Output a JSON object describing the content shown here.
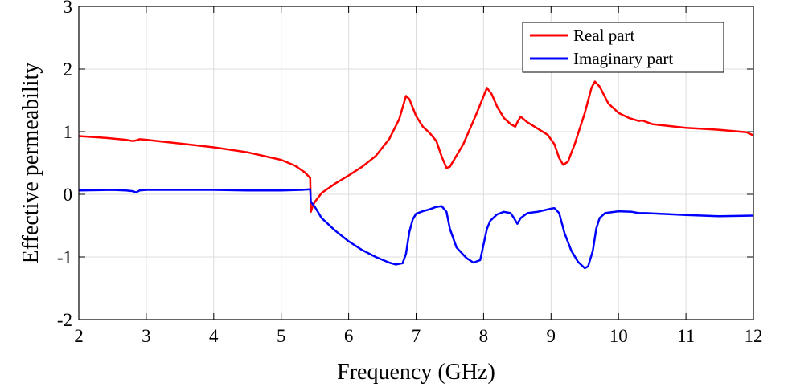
{
  "chart_data": {
    "type": "line",
    "title": "",
    "xlabel": "Frequency (GHz)",
    "ylabel": "Effective permeability",
    "xlim": [
      2,
      12
    ],
    "ylim": [
      -2,
      3
    ],
    "xticks": [
      2,
      3,
      4,
      5,
      6,
      7,
      8,
      9,
      10,
      11,
      12
    ],
    "yticks": [
      -2,
      -1,
      0,
      1,
      2,
      3
    ],
    "xtick_labels": [
      "2",
      "3",
      "4",
      "5",
      "6",
      "7",
      "8",
      "9",
      "10",
      "11",
      "12"
    ],
    "ytick_labels": [
      "-2",
      "-1",
      "0",
      "1",
      "2",
      "3"
    ],
    "grid": true,
    "legend_position": "top-right",
    "series": [
      {
        "name": "Real part",
        "color": "#ff0000",
        "points": [
          [
            2.0,
            0.93
          ],
          [
            2.4,
            0.9
          ],
          [
            2.7,
            0.87
          ],
          [
            2.8,
            0.85
          ],
          [
            2.85,
            0.86
          ],
          [
            2.9,
            0.88
          ],
          [
            3.0,
            0.87
          ],
          [
            3.5,
            0.81
          ],
          [
            4.0,
            0.75
          ],
          [
            4.5,
            0.67
          ],
          [
            5.0,
            0.55
          ],
          [
            5.2,
            0.46
          ],
          [
            5.35,
            0.35
          ],
          [
            5.43,
            0.26
          ],
          [
            5.44,
            -0.28
          ],
          [
            5.47,
            -0.18
          ],
          [
            5.5,
            -0.12
          ],
          [
            5.6,
            0.02
          ],
          [
            5.8,
            0.17
          ],
          [
            6.0,
            0.3
          ],
          [
            6.2,
            0.44
          ],
          [
            6.4,
            0.61
          ],
          [
            6.6,
            0.88
          ],
          [
            6.75,
            1.2
          ],
          [
            6.85,
            1.57
          ],
          [
            6.9,
            1.52
          ],
          [
            7.0,
            1.25
          ],
          [
            7.1,
            1.08
          ],
          [
            7.2,
            0.98
          ],
          [
            7.3,
            0.85
          ],
          [
            7.38,
            0.6
          ],
          [
            7.45,
            0.42
          ],
          [
            7.5,
            0.44
          ],
          [
            7.7,
            0.8
          ],
          [
            7.9,
            1.3
          ],
          [
            8.05,
            1.7
          ],
          [
            8.12,
            1.6
          ],
          [
            8.2,
            1.4
          ],
          [
            8.3,
            1.22
          ],
          [
            8.4,
            1.12
          ],
          [
            8.47,
            1.08
          ],
          [
            8.5,
            1.15
          ],
          [
            8.55,
            1.24
          ],
          [
            8.65,
            1.15
          ],
          [
            8.8,
            1.05
          ],
          [
            8.95,
            0.95
          ],
          [
            9.05,
            0.8
          ],
          [
            9.12,
            0.58
          ],
          [
            9.18,
            0.47
          ],
          [
            9.25,
            0.52
          ],
          [
            9.35,
            0.8
          ],
          [
            9.5,
            1.3
          ],
          [
            9.6,
            1.7
          ],
          [
            9.65,
            1.8
          ],
          [
            9.72,
            1.72
          ],
          [
            9.85,
            1.45
          ],
          [
            10.0,
            1.3
          ],
          [
            10.15,
            1.22
          ],
          [
            10.3,
            1.17
          ],
          [
            10.35,
            1.18
          ],
          [
            10.5,
            1.12
          ],
          [
            11.0,
            1.06
          ],
          [
            11.5,
            1.03
          ],
          [
            11.9,
            0.99
          ],
          [
            12.0,
            0.94
          ]
        ]
      },
      {
        "name": "Imaginary part",
        "color": "#0000ff",
        "points": [
          [
            2.0,
            0.06
          ],
          [
            2.5,
            0.07
          ],
          [
            2.7,
            0.06
          ],
          [
            2.8,
            0.05
          ],
          [
            2.85,
            0.03
          ],
          [
            2.9,
            0.06
          ],
          [
            3.0,
            0.07
          ],
          [
            3.5,
            0.07
          ],
          [
            4.0,
            0.07
          ],
          [
            4.5,
            0.06
          ],
          [
            5.0,
            0.06
          ],
          [
            5.3,
            0.07
          ],
          [
            5.43,
            0.08
          ],
          [
            5.44,
            -0.12
          ],
          [
            5.5,
            -0.2
          ],
          [
            5.6,
            -0.38
          ],
          [
            5.8,
            -0.58
          ],
          [
            6.0,
            -0.75
          ],
          [
            6.2,
            -0.89
          ],
          [
            6.4,
            -1.0
          ],
          [
            6.6,
            -1.09
          ],
          [
            6.7,
            -1.12
          ],
          [
            6.8,
            -1.1
          ],
          [
            6.85,
            -0.95
          ],
          [
            6.9,
            -0.6
          ],
          [
            6.95,
            -0.4
          ],
          [
            7.0,
            -0.31
          ],
          [
            7.1,
            -0.27
          ],
          [
            7.2,
            -0.24
          ],
          [
            7.3,
            -0.2
          ],
          [
            7.38,
            -0.19
          ],
          [
            7.45,
            -0.28
          ],
          [
            7.5,
            -0.55
          ],
          [
            7.6,
            -0.85
          ],
          [
            7.75,
            -1.02
          ],
          [
            7.85,
            -1.09
          ],
          [
            7.95,
            -1.05
          ],
          [
            8.0,
            -0.8
          ],
          [
            8.05,
            -0.55
          ],
          [
            8.1,
            -0.42
          ],
          [
            8.2,
            -0.32
          ],
          [
            8.3,
            -0.28
          ],
          [
            8.4,
            -0.3
          ],
          [
            8.45,
            -0.38
          ],
          [
            8.5,
            -0.47
          ],
          [
            8.55,
            -0.38
          ],
          [
            8.65,
            -0.3
          ],
          [
            8.8,
            -0.28
          ],
          [
            9.0,
            -0.23
          ],
          [
            9.05,
            -0.22
          ],
          [
            9.12,
            -0.3
          ],
          [
            9.2,
            -0.62
          ],
          [
            9.3,
            -0.9
          ],
          [
            9.4,
            -1.08
          ],
          [
            9.5,
            -1.18
          ],
          [
            9.55,
            -1.15
          ],
          [
            9.62,
            -0.9
          ],
          [
            9.67,
            -0.55
          ],
          [
            9.72,
            -0.38
          ],
          [
            9.8,
            -0.3
          ],
          [
            10.0,
            -0.27
          ],
          [
            10.2,
            -0.28
          ],
          [
            10.3,
            -0.3
          ],
          [
            10.4,
            -0.3
          ],
          [
            11.0,
            -0.33
          ],
          [
            11.5,
            -0.35
          ],
          [
            12.0,
            -0.34
          ]
        ]
      }
    ]
  }
}
